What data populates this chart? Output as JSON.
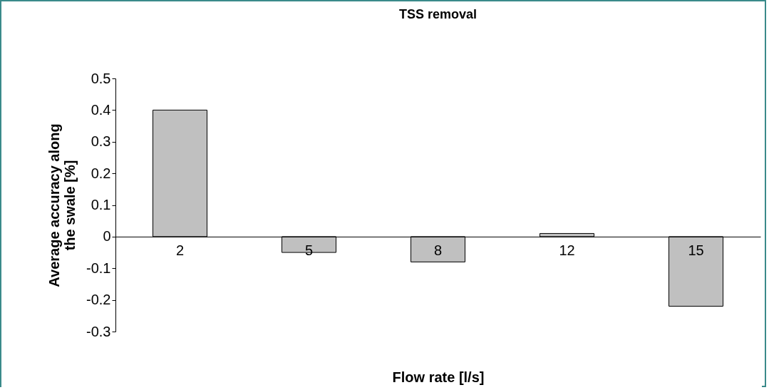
{
  "chart_data": {
    "type": "bar",
    "title": "TSS removal",
    "xlabel": "Flow rate [l/s]",
    "ylabel": "Average accuracy along the swale [%]",
    "categories": [
      "2",
      "5",
      "8",
      "12",
      "15"
    ],
    "values": [
      0.4,
      -0.05,
      -0.08,
      0.01,
      -0.22
    ],
    "color": "#c0c0c0",
    "ylim": [
      -0.3,
      0.5
    ],
    "yticks": [
      -0.3,
      -0.2,
      -0.1,
      0,
      0.1,
      0.2,
      0.3,
      0.4,
      0.5
    ],
    "grid": false
  }
}
